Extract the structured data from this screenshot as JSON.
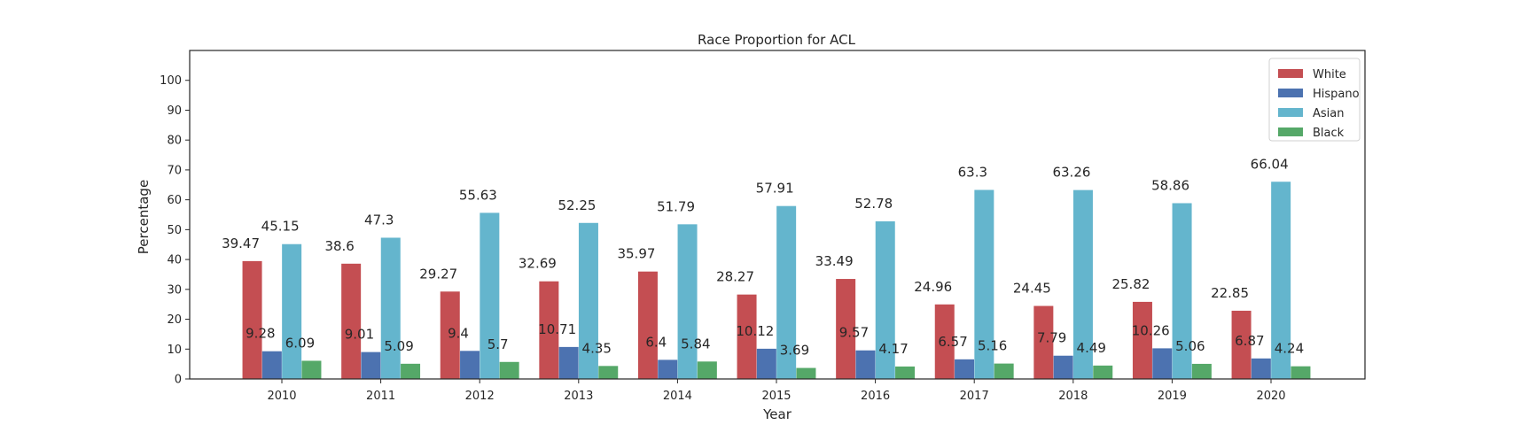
{
  "chart_data": {
    "type": "bar",
    "title": "Race Proportion for ACL",
    "xlabel": "Year",
    "ylabel": "Percentage",
    "ylim": [
      0,
      110
    ],
    "yticks": [
      0,
      10,
      20,
      30,
      40,
      50,
      60,
      70,
      80,
      90,
      100
    ],
    "grid": false,
    "legend_position": "top-right",
    "categories": [
      "2010",
      "2011",
      "2012",
      "2013",
      "2014",
      "2015",
      "2016",
      "2017",
      "2018",
      "2019",
      "2020"
    ],
    "series": [
      {
        "name": "White",
        "color": "#c44e52",
        "values": [
          39.47,
          38.6,
          29.27,
          32.69,
          35.97,
          28.27,
          33.49,
          24.96,
          24.45,
          25.82,
          22.85
        ]
      },
      {
        "name": "Hispano",
        "color": "#4c72b0",
        "values": [
          9.28,
          9.01,
          9.4,
          10.71,
          6.4,
          10.12,
          9.57,
          6.57,
          7.79,
          10.26,
          6.87
        ]
      },
      {
        "name": "Asian",
        "color": "#64b5cd",
        "values": [
          45.15,
          47.3,
          55.63,
          52.25,
          51.79,
          57.91,
          52.78,
          63.3,
          63.26,
          58.86,
          66.04
        ]
      },
      {
        "name": "Black",
        "color": "#55a868",
        "values": [
          6.09,
          5.09,
          5.7,
          4.35,
          5.84,
          3.69,
          4.17,
          5.16,
          4.49,
          5.06,
          4.24
        ]
      }
    ]
  }
}
